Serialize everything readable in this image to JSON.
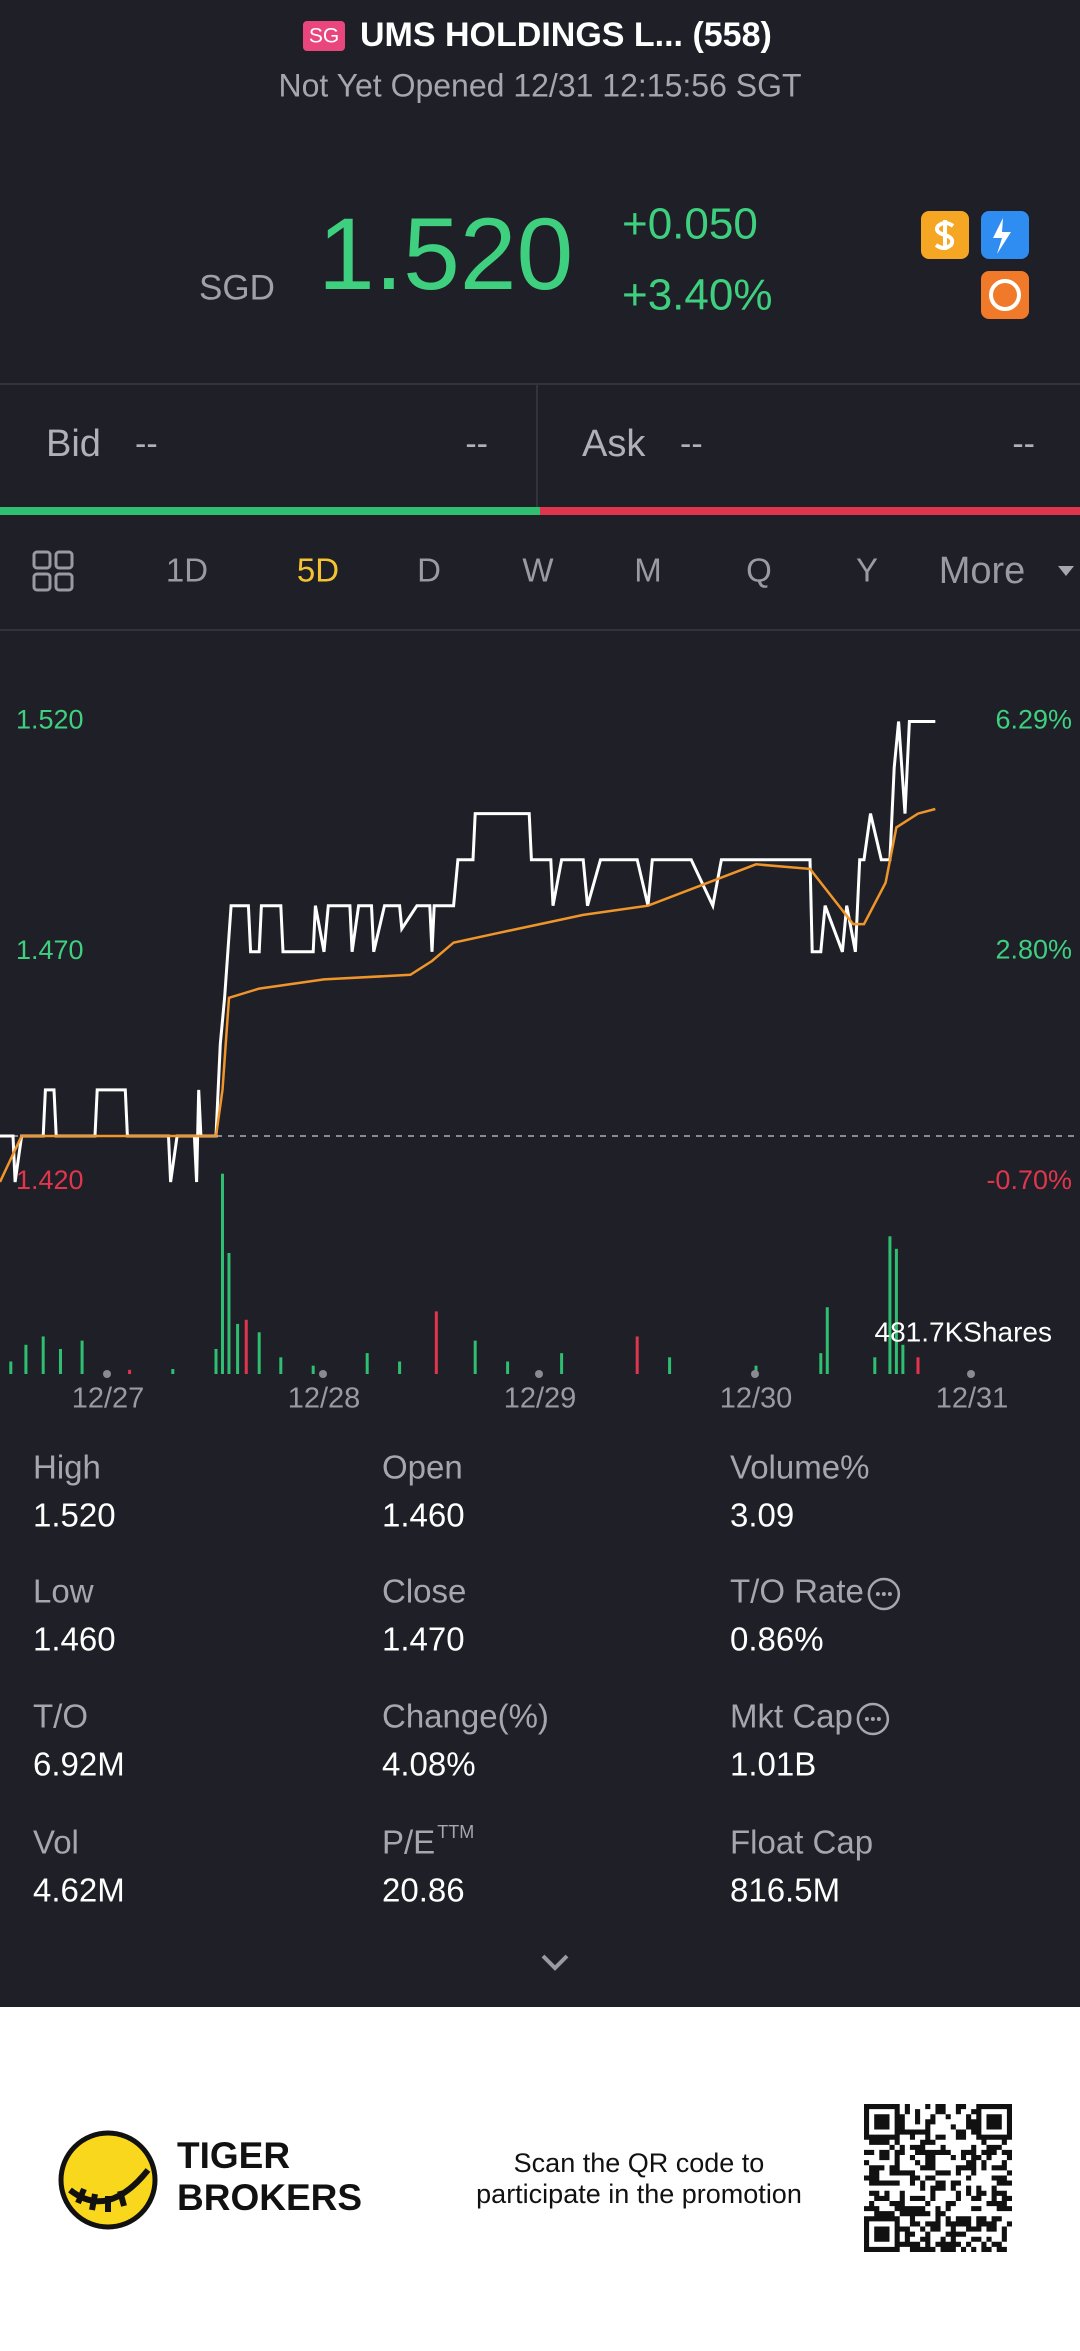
{
  "header": {
    "badge": "SG",
    "name": "UMS HOLDINGS L... (558)",
    "status": "Not Yet Opened 12/31 12:15:56 SGT"
  },
  "quote": {
    "currency": "SGD",
    "price": "1.520",
    "change": "+0.050",
    "change_pct": "+3.40%"
  },
  "bid": {
    "label": "Bid",
    "price": "--",
    "size": "--"
  },
  "ask": {
    "label": "Ask",
    "price": "--",
    "size": "--"
  },
  "tabs": [
    "1D",
    "5D",
    "D",
    "W",
    "M",
    "Q",
    "Y",
    "More"
  ],
  "active_tab": 1,
  "chart_data": {
    "type": "line",
    "series": [
      {
        "color": "#ffffff",
        "x": [
          0,
          0.06,
          0.07,
          0.1,
          0.2,
          0.21,
          0.25,
          0.26,
          0.44,
          0.45,
          0.58,
          0.59,
          0.78,
          0.79,
          0.82,
          0.9,
          0.91,
          0.92,
          0.93,
          1.0,
          1.02,
          1.04,
          1.07,
          1.15,
          1.16,
          1.2,
          1.21,
          1.3,
          1.31,
          1.45,
          1.46,
          1.5,
          1.52,
          1.62,
          1.63,
          1.66,
          1.72,
          1.73,
          1.78,
          1.85,
          1.86,
          1.93,
          1.99,
          2.0,
          2.01,
          2.1,
          2.12,
          2.19,
          2.2,
          2.45,
          2.46,
          2.55,
          2.56,
          2.6,
          2.7,
          2.72,
          2.78,
          2.95,
          3.0,
          3.02,
          3.2,
          3.3,
          3.34,
          3.5,
          3.75,
          3.76,
          3.8,
          3.82,
          3.9,
          3.92,
          3.96,
          3.98,
          4.0,
          4.03,
          4.08,
          4.12,
          4.14,
          4.16,
          4.19,
          4.21,
          4.25,
          4.33
        ],
        "values": [
          1.43,
          1.43,
          1.42,
          1.43,
          1.43,
          1.44,
          1.44,
          1.43,
          1.43,
          1.44,
          1.44,
          1.43,
          1.43,
          1.42,
          1.43,
          1.43,
          1.42,
          1.44,
          1.43,
          1.43,
          1.45,
          1.46,
          1.48,
          1.48,
          1.47,
          1.47,
          1.48,
          1.48,
          1.47,
          1.47,
          1.48,
          1.47,
          1.48,
          1.48,
          1.47,
          1.48,
          1.48,
          1.47,
          1.48,
          1.48,
          1.475,
          1.48,
          1.48,
          1.47,
          1.48,
          1.48,
          1.49,
          1.49,
          1.5,
          1.5,
          1.49,
          1.49,
          1.48,
          1.49,
          1.49,
          1.48,
          1.49,
          1.49,
          1.48,
          1.49,
          1.49,
          1.48,
          1.49,
          1.49,
          1.49,
          1.47,
          1.47,
          1.48,
          1.47,
          1.48,
          1.47,
          1.49,
          1.49,
          1.5,
          1.49,
          1.49,
          1.51,
          1.52,
          1.5,
          1.52,
          1.52,
          1.52
        ]
      },
      {
        "color": "#f0952a",
        "x": [
          0,
          0.05,
          0.1,
          0.9,
          1.0,
          1.03,
          1.06,
          1.2,
          1.5,
          1.9,
          2.0,
          2.1,
          2.3,
          2.5,
          2.7,
          3.0,
          3.5,
          3.75,
          3.95,
          4.0,
          4.1,
          4.15,
          4.25,
          4.33
        ],
        "values": [
          1.42,
          1.425,
          1.43,
          1.43,
          1.43,
          1.44,
          1.46,
          1.462,
          1.464,
          1.465,
          1.468,
          1.472,
          1.474,
          1.476,
          1.478,
          1.48,
          1.489,
          1.488,
          1.476,
          1.476,
          1.485,
          1.497,
          1.5,
          1.501
        ]
      }
    ],
    "baseline": 1.43,
    "xlim": [
      0,
      5
    ],
    "xticks": [
      {
        "value": 0.5,
        "label": "12/27"
      },
      {
        "value": 1.5,
        "label": "12/28"
      },
      {
        "value": 2.5,
        "label": "12/29"
      },
      {
        "value": 3.5,
        "label": "12/30"
      },
      {
        "value": 4.5,
        "label": "12/31"
      }
    ],
    "ylim": [
      1.42,
      1.525
    ],
    "yticks": [
      {
        "value": 1.52,
        "label": "1.520"
      },
      {
        "value": 1.47,
        "label": "1.470"
      },
      {
        "value": 1.42,
        "label": "1.420"
      }
    ],
    "y2lim": [
      -0.7,
      6.64
    ],
    "y2ticks": [
      {
        "value": 6.29,
        "label": "6.29%"
      },
      {
        "value": 2.8,
        "label": "2.80%"
      },
      {
        "value": -0.7,
        "label": "-0.70%"
      }
    ],
    "volume": {
      "x": [
        0.05,
        0.12,
        0.2,
        0.28,
        0.38,
        0.6,
        0.8,
        1.0,
        1.03,
        1.06,
        1.1,
        1.14,
        1.2,
        1.3,
        1.45,
        1.7,
        1.85,
        2.02,
        2.2,
        2.35,
        2.6,
        2.95,
        3.1,
        3.5,
        3.8,
        3.83,
        4.05,
        4.12,
        4.15,
        4.18,
        4.25
      ],
      "values": [
        30,
        70,
        90,
        60,
        80,
        10,
        12,
        60,
        480,
        290,
        120,
        130,
        100,
        40,
        20,
        50,
        30,
        150,
        80,
        30,
        50,
        90,
        40,
        20,
        50,
        160,
        40,
        330,
        300,
        70,
        40
      ],
      "colors": [
        "#2fbf71",
        "#2fbf71",
        "#2fbf71",
        "#2fbf71",
        "#2fbf71",
        "#e0364d",
        "#2fbf71",
        "#2fbf71",
        "#2fbf71",
        "#2fbf71",
        "#2fbf71",
        "#e0364d",
        "#2fbf71",
        "#2fbf71",
        "#2fbf71",
        "#2fbf71",
        "#2fbf71",
        "#e0364d",
        "#2fbf71",
        "#2fbf71",
        "#2fbf71",
        "#e0364d",
        "#2fbf71",
        "#2fbf71",
        "#2fbf71",
        "#2fbf71",
        "#2fbf71",
        "#2fbf71",
        "#2fbf71",
        "#2fbf71",
        "#e0364d"
      ],
      "ylim": [
        0,
        481.7
      ],
      "label": "481.7KShares"
    }
  },
  "stats": [
    {
      "label": "High",
      "value": "1.520"
    },
    {
      "label": "Open",
      "value": "1.460"
    },
    {
      "label": "Volume%",
      "value": "3.09"
    },
    {
      "label": "Low",
      "value": "1.460"
    },
    {
      "label": "Close",
      "value": "1.470"
    },
    {
      "label": "T/O Rate",
      "value": "0.86%",
      "info": true
    },
    {
      "label": "T/O",
      "value": "6.92M"
    },
    {
      "label": "Change(%)",
      "value": "4.08%"
    },
    {
      "label": "Mkt Cap",
      "value": "1.01B",
      "info": true
    },
    {
      "label": "Vol",
      "value": "4.62M"
    },
    {
      "label": "P/E",
      "label_sup": "TTM",
      "value": "20.86"
    },
    {
      "label": "Float Cap",
      "value": "816.5M"
    }
  ],
  "footer": {
    "brand": [
      "TIGER",
      "BROKERS"
    ],
    "promo": [
      "Scan the QR code to",
      "participate in the promotion"
    ]
  }
}
